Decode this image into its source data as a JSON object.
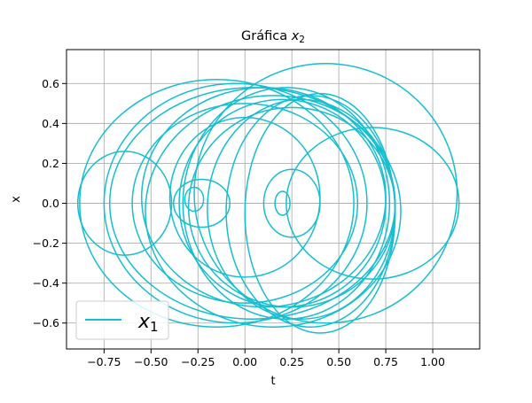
{
  "chart_data": {
    "type": "line",
    "title": {
      "prefix": "Gráfica ",
      "var": "x",
      "sub": "2"
    },
    "xlabel": "t",
    "ylabel": "x",
    "xlim": [
      -0.95,
      1.25
    ],
    "ylim": [
      -0.73,
      0.77
    ],
    "xticks": [
      -0.75,
      -0.5,
      -0.25,
      0.0,
      0.25,
      0.5,
      0.75,
      1.0
    ],
    "xtick_labels": [
      "−0.75",
      "−0.50",
      "−0.25",
      "0.00",
      "0.25",
      "0.50",
      "0.75",
      "1.00"
    ],
    "yticks": [
      -0.6,
      -0.4,
      -0.2,
      0.0,
      0.2,
      0.4,
      0.6
    ],
    "ytick_labels": [
      "−0.6",
      "−0.4",
      "−0.2",
      "0.0",
      "0.2",
      "0.4",
      "0.6"
    ],
    "grid": true,
    "legend": {
      "placement": "lower-left",
      "entries": [
        {
          "var": "x",
          "sub": "1"
        }
      ]
    },
    "series": [
      {
        "color": "#17becf",
        "loops": [
          {
            "cx": 0.43,
            "cy": 0.05,
            "rx": 0.7,
            "ry": 0.65
          },
          {
            "cx": 0.04,
            "cy": 0.0,
            "rx": 0.76,
            "ry": 0.58
          },
          {
            "cx": 0.1,
            "cy": 0.03,
            "rx": 0.65,
            "ry": 0.55
          },
          {
            "cx": -0.05,
            "cy": 0.0,
            "rx": 0.7,
            "ry": 0.6
          },
          {
            "cx": 0.2,
            "cy": 0.0,
            "rx": 0.55,
            "ry": 0.52
          },
          {
            "cx": 0.3,
            "cy": -0.03,
            "rx": 0.5,
            "ry": 0.55
          },
          {
            "cx": 0.35,
            "cy": -0.04,
            "rx": 0.45,
            "ry": 0.58
          },
          {
            "cx": 0.4,
            "cy": -0.05,
            "rx": 0.4,
            "ry": 0.6
          },
          {
            "cx": 0.15,
            "cy": -0.04,
            "rx": 0.68,
            "ry": 0.58
          },
          {
            "cx": 0.25,
            "cy": -0.02,
            "rx": 0.55,
            "ry": 0.5
          },
          {
            "cx": 0.0,
            "cy": 0.03,
            "rx": 0.4,
            "ry": 0.4
          },
          {
            "cx": -0.23,
            "cy": 0.0,
            "rx": 0.15,
            "ry": 0.12
          },
          {
            "cx": 0.25,
            "cy": 0.0,
            "rx": 0.15,
            "ry": 0.17
          },
          {
            "cx": -0.27,
            "cy": 0.02,
            "rx": 0.05,
            "ry": 0.06
          },
          {
            "cx": 0.2,
            "cy": 0.0,
            "rx": 0.04,
            "ry": 0.06
          },
          {
            "cx": -0.64,
            "cy": 0.0,
            "rx": 0.25,
            "ry": 0.26
          },
          {
            "cx": 0.68,
            "cy": 0.0,
            "rx": 0.46,
            "ry": 0.38
          },
          {
            "cx": -0.15,
            "cy": 0.0,
            "rx": 0.73,
            "ry": 0.62
          },
          {
            "cx": 0.22,
            "cy": 0.0,
            "rx": 0.55,
            "ry": 0.58
          },
          {
            "cx": 0.0,
            "cy": 0.0,
            "rx": 0.6,
            "ry": 0.5
          }
        ]
      }
    ]
  }
}
